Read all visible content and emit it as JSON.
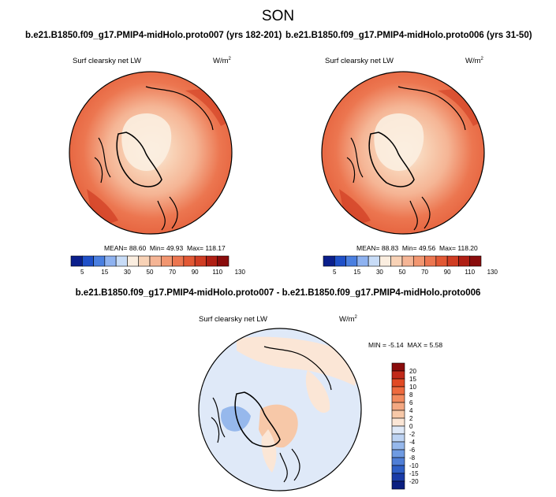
{
  "page": {
    "title": "SON"
  },
  "panels": {
    "left": {
      "title": "b.e21.B1850.f09_g17.PMIP4-midHolo.proto007 (yrs 182-201)",
      "variable": "Surf clearsky net LW",
      "units": "W/m",
      "units_exp": "2",
      "stats": {
        "mean": "88.60",
        "min": "49.93",
        "max": "118.17"
      }
    },
    "right": {
      "title": "b.e21.B1850.f09_g17.PMIP4-midHolo.proto006 (yrs 31-50)",
      "variable": "Surf clearsky net LW",
      "units": "W/m",
      "units_exp": "2",
      "stats": {
        "mean": "88.83",
        "min": "49.56",
        "max": "118.20"
      }
    },
    "diff": {
      "title": "b.e21.B1850.f09_g17.PMIP4-midHolo.proto007 - b.e21.B1850.f09_g17.PMIP4-midHolo.proto006",
      "variable": "Surf clearsky net LW",
      "units": "W/m",
      "units_exp": "2",
      "stats": {
        "min": "-5.14",
        "max": "5.58"
      }
    }
  },
  "labels": {
    "mean": "MEAN=",
    "min": "Min=",
    "max": "Max=",
    "diff_min": "MIN =",
    "diff_max": "MAX ="
  },
  "chart_data": [
    {
      "type": "heatmap",
      "projection": "polar-stereographic-north",
      "title": "b.e21.B1850.f09_g17.PMIP4-midHolo.proto007 (yrs 182-201)",
      "variable": "Surf clearsky net LW (W/m2)",
      "colorbar_ticks": [
        "5",
        "15",
        "30",
        "50",
        "70",
        "90",
        "110",
        "130"
      ],
      "colors": [
        "#0b1f8c",
        "#1f50c8",
        "#4a7fe0",
        "#8eb2f0",
        "#c8dcf7",
        "#fbeee0",
        "#f8d2b6",
        "#f5b595",
        "#f29670",
        "#ec7650",
        "#e25834",
        "#d03d23",
        "#b01f14",
        "#8a0c0c"
      ],
      "stats": {
        "mean": 88.6,
        "min": 49.93,
        "max": 118.17
      }
    },
    {
      "type": "heatmap",
      "projection": "polar-stereographic-north",
      "title": "b.e21.B1850.f09_g17.PMIP4-midHolo.proto006 (yrs 31-50)",
      "variable": "Surf clearsky net LW (W/m2)",
      "colorbar_ticks": [
        "5",
        "15",
        "30",
        "50",
        "70",
        "90",
        "110",
        "130"
      ],
      "colors": [
        "#0b1f8c",
        "#1f50c8",
        "#4a7fe0",
        "#8eb2f0",
        "#c8dcf7",
        "#fbeee0",
        "#f8d2b6",
        "#f5b595",
        "#f29670",
        "#ec7650",
        "#e25834",
        "#d03d23",
        "#b01f14",
        "#8a0c0c"
      ],
      "stats": {
        "mean": 88.83,
        "min": 49.56,
        "max": 118.2
      }
    },
    {
      "type": "heatmap",
      "projection": "polar-stereographic-north",
      "title": "b.e21.B1850.f09_g17.PMIP4-midHolo.proto007 - b.e21.B1850.f09_g17.PMIP4-midHolo.proto006",
      "variable": "Surf clearsky net LW (W/m2)",
      "colorbar_ticks": [
        "20",
        "15",
        "10",
        "8",
        "6",
        "4",
        "2",
        "0",
        "-2",
        "-4",
        "-6",
        "-8",
        "-10",
        "-15",
        "-20"
      ],
      "colors": [
        "#8a0c0c",
        "#c12a1a",
        "#e14a24",
        "#ee6a3e",
        "#f28a5e",
        "#f4a882",
        "#f7c8a8",
        "#fbe6d6",
        "#dfe9f8",
        "#bdd3f3",
        "#96b8ec",
        "#6f9be2",
        "#4f7ed6",
        "#2f5fc6",
        "#1a3ca8",
        "#0b1f80"
      ],
      "stats": {
        "min": -5.14,
        "max": 5.58
      }
    }
  ]
}
